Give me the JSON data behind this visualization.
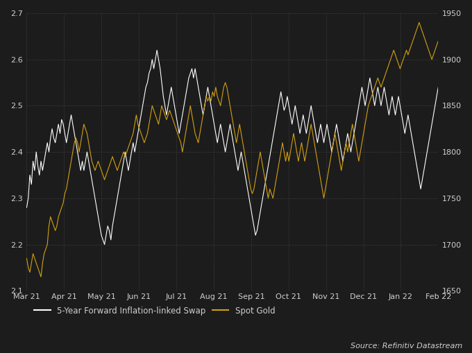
{
  "background_color": "#1c1c1c",
  "grid_color": "#3a3a3a",
  "text_color": "#d0d0d0",
  "swap_color": "#ffffff",
  "gold_color": "#d4a010",
  "left_ylim": [
    2.1,
    2.7
  ],
  "right_ylim": [
    1650,
    1950
  ],
  "left_yticks": [
    2.1,
    2.2,
    2.3,
    2.4,
    2.5,
    2.6,
    2.7
  ],
  "right_yticks": [
    1650,
    1700,
    1750,
    1800,
    1850,
    1900,
    1950
  ],
  "x_labels": [
    "Mar 21",
    "Apr 21",
    "May 21",
    "Jun 21",
    "Jul 21",
    "Aug 21",
    "Sep 21",
    "Oct 21",
    "Nov 21",
    "Dec 21",
    "Jan 22",
    "Feb 22"
  ],
  "legend_swap": "5-Year Forward Inflation-linked Swap",
  "legend_gold": "Spot Gold",
  "source_text": "Source: Refinitiv Datastream",
  "swap_data": [
    2.28,
    2.3,
    2.35,
    2.33,
    2.38,
    2.36,
    2.4,
    2.37,
    2.35,
    2.38,
    2.36,
    2.38,
    2.4,
    2.42,
    2.4,
    2.43,
    2.45,
    2.43,
    2.42,
    2.44,
    2.46,
    2.44,
    2.47,
    2.46,
    2.44,
    2.42,
    2.44,
    2.46,
    2.48,
    2.46,
    2.44,
    2.42,
    2.4,
    2.38,
    2.36,
    2.38,
    2.36,
    2.38,
    2.4,
    2.38,
    2.36,
    2.34,
    2.32,
    2.3,
    2.28,
    2.26,
    2.24,
    2.22,
    2.21,
    2.2,
    2.22,
    2.24,
    2.23,
    2.21,
    2.24,
    2.26,
    2.28,
    2.3,
    2.32,
    2.34,
    2.36,
    2.38,
    2.4,
    2.38,
    2.36,
    2.38,
    2.4,
    2.42,
    2.4,
    2.42,
    2.44,
    2.46,
    2.48,
    2.5,
    2.52,
    2.54,
    2.55,
    2.57,
    2.58,
    2.6,
    2.58,
    2.6,
    2.62,
    2.6,
    2.58,
    2.55,
    2.52,
    2.5,
    2.48,
    2.5,
    2.52,
    2.54,
    2.52,
    2.5,
    2.48,
    2.46,
    2.44,
    2.46,
    2.48,
    2.5,
    2.52,
    2.54,
    2.56,
    2.57,
    2.58,
    2.56,
    2.58,
    2.56,
    2.54,
    2.52,
    2.5,
    2.48,
    2.5,
    2.52,
    2.54,
    2.52,
    2.5,
    2.48,
    2.46,
    2.44,
    2.42,
    2.44,
    2.46,
    2.44,
    2.42,
    2.4,
    2.42,
    2.44,
    2.46,
    2.44,
    2.42,
    2.4,
    2.38,
    2.36,
    2.38,
    2.4,
    2.38,
    2.36,
    2.34,
    2.32,
    2.3,
    2.28,
    2.26,
    2.24,
    2.22,
    2.23,
    2.25,
    2.27,
    2.29,
    2.31,
    2.33,
    2.35,
    2.37,
    2.39,
    2.41,
    2.43,
    2.45,
    2.47,
    2.49,
    2.51,
    2.53,
    2.51,
    2.49,
    2.5,
    2.52,
    2.5,
    2.48,
    2.46,
    2.48,
    2.5,
    2.48,
    2.46,
    2.44,
    2.46,
    2.48,
    2.46,
    2.44,
    2.46,
    2.48,
    2.5,
    2.48,
    2.46,
    2.44,
    2.42,
    2.44,
    2.46,
    2.44,
    2.42,
    2.44,
    2.46,
    2.44,
    2.42,
    2.4,
    2.42,
    2.44,
    2.46,
    2.44,
    2.42,
    2.4,
    2.38,
    2.4,
    2.42,
    2.44,
    2.42,
    2.4,
    2.42,
    2.44,
    2.46,
    2.48,
    2.5,
    2.52,
    2.54,
    2.52,
    2.5,
    2.52,
    2.54,
    2.56,
    2.54,
    2.52,
    2.5,
    2.52,
    2.54,
    2.52,
    2.5,
    2.52,
    2.54,
    2.52,
    2.5,
    2.48,
    2.5,
    2.52,
    2.5,
    2.48,
    2.5,
    2.52,
    2.5,
    2.48,
    2.46,
    2.44,
    2.46,
    2.48,
    2.46,
    2.44,
    2.42,
    2.4,
    2.38,
    2.36,
    2.34,
    2.32,
    2.34,
    2.36,
    2.38,
    2.4,
    2.42,
    2.44,
    2.46,
    2.48,
    2.5,
    2.52,
    2.54
  ],
  "gold_data": [
    1685,
    1675,
    1670,
    1680,
    1690,
    1685,
    1680,
    1675,
    1670,
    1665,
    1680,
    1690,
    1695,
    1700,
    1720,
    1730,
    1725,
    1720,
    1715,
    1720,
    1730,
    1735,
    1740,
    1745,
    1755,
    1760,
    1770,
    1780,
    1790,
    1800,
    1810,
    1815,
    1810,
    1800,
    1810,
    1820,
    1830,
    1825,
    1820,
    1810,
    1800,
    1790,
    1785,
    1780,
    1785,
    1790,
    1785,
    1780,
    1775,
    1770,
    1775,
    1780,
    1785,
    1790,
    1795,
    1790,
    1785,
    1780,
    1785,
    1790,
    1795,
    1800,
    1795,
    1800,
    1805,
    1810,
    1815,
    1820,
    1830,
    1840,
    1830,
    1825,
    1820,
    1815,
    1810,
    1815,
    1820,
    1830,
    1840,
    1850,
    1845,
    1840,
    1835,
    1830,
    1840,
    1850,
    1845,
    1840,
    1835,
    1840,
    1845,
    1840,
    1835,
    1830,
    1825,
    1820,
    1815,
    1810,
    1800,
    1810,
    1820,
    1830,
    1840,
    1850,
    1840,
    1830,
    1820,
    1815,
    1810,
    1820,
    1830,
    1840,
    1850,
    1860,
    1855,
    1860,
    1855,
    1865,
    1860,
    1870,
    1860,
    1855,
    1850,
    1860,
    1870,
    1875,
    1870,
    1860,
    1850,
    1840,
    1830,
    1820,
    1810,
    1820,
    1830,
    1820,
    1810,
    1800,
    1790,
    1780,
    1770,
    1760,
    1755,
    1760,
    1770,
    1780,
    1790,
    1800,
    1790,
    1780,
    1770,
    1760,
    1750,
    1760,
    1755,
    1750,
    1760,
    1770,
    1780,
    1790,
    1800,
    1810,
    1800,
    1790,
    1800,
    1790,
    1800,
    1810,
    1820,
    1810,
    1800,
    1790,
    1800,
    1810,
    1800,
    1790,
    1800,
    1810,
    1820,
    1830,
    1820,
    1810,
    1800,
    1790,
    1780,
    1770,
    1760,
    1750,
    1760,
    1770,
    1780,
    1790,
    1800,
    1810,
    1820,
    1810,
    1800,
    1790,
    1780,
    1790,
    1800,
    1810,
    1800,
    1810,
    1820,
    1830,
    1820,
    1810,
    1800,
    1790,
    1800,
    1810,
    1820,
    1830,
    1840,
    1850,
    1855,
    1860,
    1865,
    1870,
    1875,
    1880,
    1875,
    1870,
    1875,
    1880,
    1885,
    1890,
    1895,
    1900,
    1905,
    1910,
    1905,
    1900,
    1895,
    1890,
    1895,
    1900,
    1905,
    1910,
    1905,
    1910,
    1915,
    1920,
    1925,
    1930,
    1935,
    1940,
    1935,
    1930,
    1925,
    1920,
    1915,
    1910,
    1905,
    1900,
    1905,
    1910,
    1915,
    1920
  ]
}
